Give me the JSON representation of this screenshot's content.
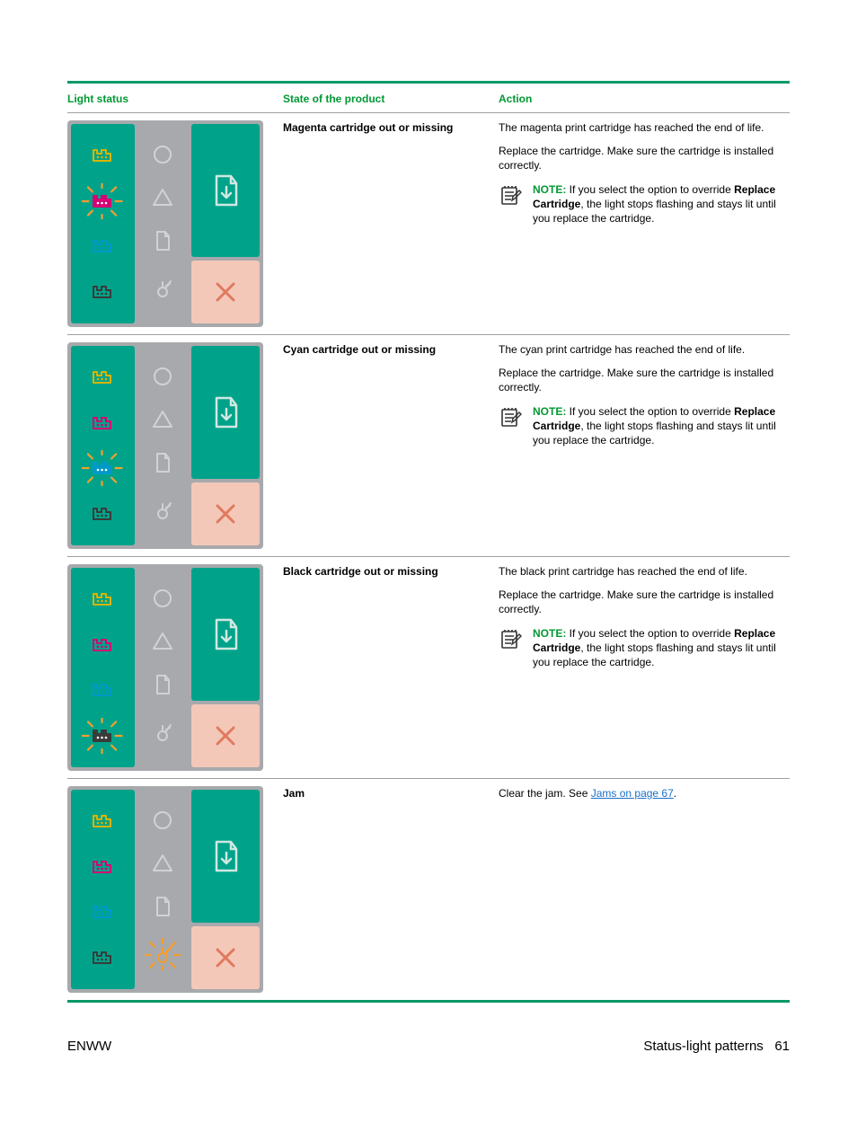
{
  "headers": {
    "col1": "Light status",
    "col2": "State of the product",
    "col3": "Action"
  },
  "rows": [
    {
      "state": "Magenta cartridge out or missing",
      "p1": "The magenta print cartridge has reached the end of life.",
      "p2": "Replace the cartridge. Make sure the cartridge is installed correctly.",
      "note_label": "NOTE:",
      "note_a": " If you select the option to override ",
      "note_bold": "Replace <Color> Cartridge",
      "note_b": ", the light stops flashing and stays lit until you replace the cartridge.",
      "flashing": "magenta",
      "jam_flash": false
    },
    {
      "state": "Cyan cartridge out or missing",
      "p1": "The cyan print cartridge has reached the end of life.",
      "p2": "Replace the cartridge. Make sure the cartridge is installed correctly.",
      "note_label": "NOTE:",
      "note_a": " If you select the option to override ",
      "note_bold": "Replace <Color> Cartridge",
      "note_b": ", the light stops flashing and stays lit until you replace the cartridge.",
      "flashing": "cyan",
      "jam_flash": false
    },
    {
      "state": "Black cartridge out or missing",
      "p1": "The black print cartridge has reached the end of life.",
      "p2": "Replace the cartridge. Make sure the cartridge is installed correctly.",
      "note_label": "NOTE:",
      "note_a": " If you select the option to override ",
      "note_bold": "Replace <Color> Cartridge",
      "note_b": ", the light stops flashing and stays lit until you replace the cartridge.",
      "flashing": "black",
      "jam_flash": false
    },
    {
      "state": "Jam",
      "p1": "Clear the jam. See ",
      "link": "Jams on page 67",
      "p1b": ".",
      "flashing": "none",
      "jam_flash": true
    }
  ],
  "footer": {
    "left": "ENWW",
    "right_label": "Status-light patterns",
    "right_page": "61"
  },
  "colors": {
    "accent": "#009966",
    "teal": "#00a38a",
    "peach": "#f4c8b8",
    "grey": "#a7a9ac",
    "yellow": "#d9b400",
    "magenta": "#d60073",
    "cyan": "#0099cc",
    "black": "#3a3a3a",
    "ray": "#f59e2e",
    "cancel": "#e07a5f",
    "outline": "#ffffff"
  }
}
